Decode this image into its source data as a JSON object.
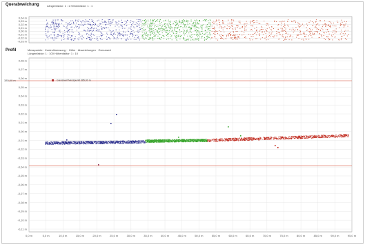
{
  "top_panel": {
    "title": "Querabweichung",
    "legend_text": "Längenfaktor: 1 : 1   Höhenfaktor: 1 : 1",
    "y_ticks": [
      "0,04 m",
      "0,03 m",
      "0,02 m",
      "0,01 m",
      "0,00 m",
      "-0,01 m",
      "-0,02 m",
      "-0,03 m"
    ]
  },
  "bottom_panel": {
    "title": "Profil",
    "legend_line1": "Messpunkte · Kontrollmessung ·· Höhe · Abweichungen · Grenzwert",
    "legend_line2": "Längenfaktor: 1 : 100   Höhenfaktor: 1 : 10",
    "ref_label": "385,00 m",
    "annotation": "Grenzwert Messpunkt 385,00 m"
  },
  "chart_data": {
    "type": "scatter",
    "y_ticks": [
      "0,08 m",
      "0,07 m",
      "0,06 m",
      "0,05 m",
      "0,04 m",
      "0,03 m",
      "0,02 m",
      "0,01 m",
      "0,00 m",
      "-0,01 m",
      "-0,02 m",
      "-0,03 m",
      "-0,04 m",
      "-0,05 m",
      "-0,06 m",
      "-0,07 m",
      "-0,08 m",
      "-0,09 m",
      "-0,10 m",
      "-0,11 m"
    ],
    "x_ticks": [
      "0,0 m",
      "5,0 m",
      "10,0 m",
      "15,0 m",
      "20,0 m",
      "25,0 m",
      "30,0 m",
      "35,0 m",
      "40,0 m",
      "45,0 m",
      "50,0 m",
      "55,0 m",
      "60,0 m",
      "65,0 m",
      "70,0 m",
      "75,0 m",
      "80,0 m",
      "85,0 m",
      "90,0 m",
      "95,0 m"
    ],
    "series": [
      {
        "color": "#2b2f8c",
        "points": [
          [
            10,
            -0.02
          ],
          [
            20,
            -0.02
          ],
          [
            30,
            -0.019
          ],
          [
            40,
            -0.019
          ],
          [
            50,
            -0.018
          ]
        ]
      },
      {
        "color": "#3aa52e",
        "points": [
          [
            55,
            -0.018
          ],
          [
            65,
            -0.017
          ],
          [
            75,
            -0.017
          ],
          [
            84,
            -0.016
          ]
        ]
      },
      {
        "color": "#c0291c",
        "points": [
          [
            85,
            -0.016
          ],
          [
            95,
            -0.015
          ],
          [
            105,
            -0.014
          ],
          [
            120,
            -0.012
          ],
          [
            135,
            -0.01
          ]
        ]
      }
    ],
    "grid": true
  }
}
